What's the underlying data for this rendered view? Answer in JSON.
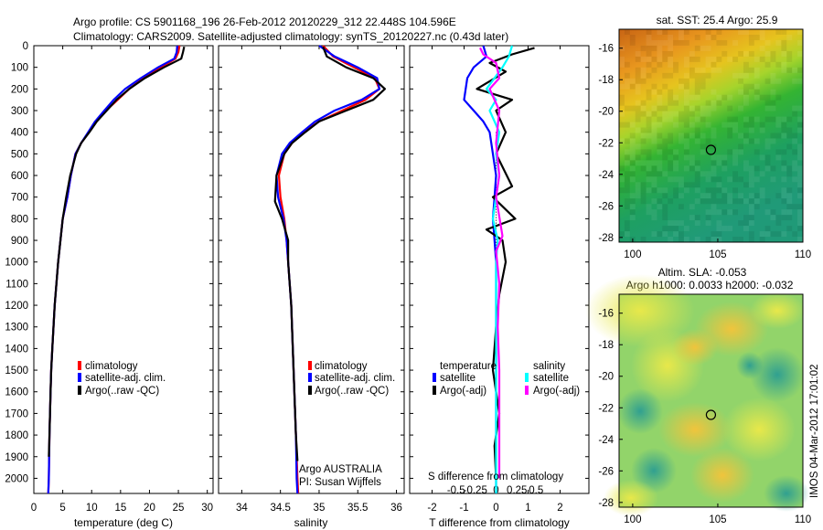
{
  "header": {
    "line1": "Argo profile: CS 5901168_196 26-Feb-2012 20120229_312 22.448S 104.596E",
    "line2": "Climatology: CARS2009. Satellite-adjusted climatology: synTS_20120227.nc (0.43d later)"
  },
  "stamp": "IMOS 04-Mar-2012 17:01:02",
  "colors": {
    "climatology": "#ff0000",
    "satellite": "#0000ff",
    "argo": "#000000",
    "sal_sat": "#00ffff",
    "sal_argo": "#ff00ff"
  },
  "chart_data": [
    {
      "id": "temperature",
      "type": "line",
      "xlabel": "temperature (deg C)",
      "xlim": [
        0,
        31
      ],
      "ylim": [
        2070,
        0
      ],
      "xticks": [
        "0",
        "5",
        "10",
        "15",
        "20",
        "25",
        "30"
      ],
      "xtick_values": [
        0,
        5,
        10,
        15,
        20,
        25,
        30
      ],
      "yticks": [
        "0",
        "100",
        "200",
        "300",
        "400",
        "500",
        "600",
        "700",
        "800",
        "900",
        "1000",
        "1100",
        "1200",
        "1300",
        "1400",
        "1500",
        "1600",
        "1700",
        "1800",
        "1900",
        "2000"
      ],
      "ytick_values": [
        0,
        100,
        200,
        300,
        400,
        500,
        600,
        700,
        800,
        900,
        1000,
        1100,
        1200,
        1300,
        1400,
        1500,
        1600,
        1700,
        1800,
        1900,
        2000
      ],
      "legend": [
        "climatology",
        "satellite-adj. clim.",
        "Argo(..raw -QC)"
      ],
      "series": [
        {
          "name": "climatology",
          "color": "#ff0000",
          "x": [
            25.2,
            25.0,
            24.5,
            22.0,
            19.0,
            16.5,
            14.5,
            12.5,
            10.8,
            9.5,
            8.2,
            7.2,
            6.4,
            5.8,
            5.0,
            4.6,
            4.2,
            3.9,
            3.6,
            3.4,
            3.2,
            3.0,
            2.9,
            2.7,
            2.6,
            2.5
          ],
          "y": [
            0,
            30,
            60,
            100,
            150,
            200,
            250,
            300,
            350,
            400,
            450,
            500,
            600,
            700,
            800,
            900,
            1000,
            1100,
            1200,
            1300,
            1400,
            1500,
            1600,
            1800,
            2000,
            2070
          ]
        },
        {
          "name": "satellite-adj. clim.",
          "color": "#0000ff",
          "x": [
            24.8,
            24.7,
            24.3,
            21.5,
            18.5,
            15.8,
            13.8,
            12.2,
            10.6,
            9.4,
            8.2,
            7.2,
            6.4,
            5.8,
            5.0,
            4.6,
            4.2,
            3.9,
            3.6,
            3.4,
            3.2,
            3.0,
            2.9,
            2.7,
            2.6,
            2.5
          ],
          "y": [
            0,
            30,
            60,
            100,
            150,
            200,
            250,
            300,
            350,
            400,
            450,
            500,
            600,
            700,
            800,
            900,
            1000,
            1100,
            1200,
            1300,
            1400,
            1500,
            1600,
            1800,
            2000,
            2070
          ]
        },
        {
          "name": "Argo(..raw -QC)",
          "color": "#000000",
          "x": [
            26.0,
            25.8,
            25.5,
            22.5,
            19.2,
            16.5,
            14.3,
            12.6,
            10.9,
            9.6,
            8.2,
            7.3,
            6.3,
            5.6,
            5.0,
            4.6,
            4.2,
            3.9,
            3.6,
            3.4,
            3.2,
            3.0,
            2.9,
            2.7,
            2.6
          ],
          "y": [
            5,
            30,
            60,
            100,
            150,
            200,
            250,
            300,
            350,
            400,
            450,
            500,
            600,
            700,
            800,
            900,
            1000,
            1100,
            1200,
            1300,
            1400,
            1500,
            1600,
            1800,
            1900
          ]
        }
      ]
    },
    {
      "id": "salinity",
      "type": "line",
      "xlabel": "salinity",
      "xlim": [
        33.7,
        36.1
      ],
      "ylim": [
        2070,
        0
      ],
      "xticks": [
        "34",
        "34.5",
        "35",
        "35.5",
        "36"
      ],
      "xtick_values": [
        34,
        34.5,
        35,
        35.5,
        36
      ],
      "legend": [
        "climatology",
        "satellite-adj. clim.",
        "Argo(..raw -QC)"
      ],
      "annotation": [
        "Argo AUSTRALIA",
        "PI: Susan Wijffels"
      ],
      "series": [
        {
          "name": "climatology",
          "color": "#ff0000",
          "x": [
            35.05,
            35.18,
            35.45,
            35.72,
            35.78,
            35.6,
            35.3,
            35.0,
            34.8,
            34.65,
            34.55,
            34.48,
            34.5,
            34.55,
            34.58,
            34.6,
            34.62,
            34.64,
            34.66,
            34.68,
            34.7,
            34.72,
            34.73
          ],
          "y": [
            0,
            50,
            100,
            150,
            200,
            250,
            300,
            350,
            400,
            450,
            500,
            600,
            700,
            800,
            900,
            1000,
            1100,
            1200,
            1400,
            1600,
            1800,
            2000,
            2070
          ]
        },
        {
          "name": "satellite-adj. clim.",
          "color": "#0000ff",
          "x": [
            35.0,
            35.2,
            35.5,
            35.75,
            35.78,
            35.55,
            35.2,
            34.95,
            34.78,
            34.62,
            34.52,
            34.45,
            34.47,
            34.54,
            34.58,
            34.6,
            34.62,
            34.64,
            34.66,
            34.68,
            34.7,
            34.71,
            34.72
          ],
          "y": [
            0,
            50,
            100,
            150,
            200,
            250,
            300,
            350,
            400,
            450,
            500,
            600,
            700,
            800,
            900,
            1000,
            1100,
            1200,
            1400,
            1600,
            1800,
            2000,
            2070
          ]
        },
        {
          "name": "Argo(..raw -QC)",
          "color": "#000000",
          "x": [
            35.05,
            35.1,
            35.35,
            35.7,
            35.85,
            35.7,
            35.35,
            35.0,
            34.82,
            34.65,
            34.55,
            34.45,
            34.43,
            34.52,
            34.6,
            34.6,
            34.62,
            34.64,
            34.66,
            34.68,
            34.7,
            34.72
          ],
          "y": [
            5,
            50,
            100,
            150,
            200,
            250,
            300,
            350,
            400,
            450,
            500,
            600,
            720,
            800,
            900,
            1000,
            1100,
            1200,
            1400,
            1600,
            1800,
            1920
          ]
        }
      ]
    },
    {
      "id": "difference",
      "type": "line",
      "xlabel": "T difference from climatology",
      "toplabel": "S difference from climatology",
      "xlim": [
        -2.7,
        2.9
      ],
      "ylim": [
        2070,
        0
      ],
      "xticks": [
        "-2",
        "-1",
        "0",
        "1",
        "2"
      ],
      "xtick_values": [
        -2,
        -1,
        0,
        1,
        2
      ],
      "sticks": [
        "-0.5",
        "-0.25",
        "0",
        "0.25",
        "0.5"
      ],
      "stick_values": [
        -1.25,
        -0.65,
        0,
        0.65,
        1.25
      ],
      "legend_temperature": [
        "temperature",
        "satellite",
        "Argo(-adj)"
      ],
      "legend_salinity": [
        "salinity",
        "satellite",
        "Argo(-adj)"
      ],
      "series": [
        {
          "name": "satellite",
          "color": "#0000ff",
          "x": [
            -0.4,
            -0.3,
            -0.7,
            -0.9,
            -1.0,
            -0.7,
            -0.4,
            -0.2,
            -0.1,
            0.0,
            -0.05,
            -0.1,
            -0.05,
            0.0,
            0.0,
            0.0,
            0.0,
            0.0,
            0.0,
            0.0,
            0.0
          ],
          "y": [
            0,
            50,
            100,
            150,
            250,
            300,
            350,
            400,
            500,
            600,
            700,
            800,
            900,
            1000,
            1100,
            1200,
            1400,
            1600,
            1800,
            2000,
            2070
          ]
        },
        {
          "name": "Argo(-adj)",
          "color": "#000000",
          "x": [
            1.2,
            0.5,
            -0.2,
            0.3,
            -0.6,
            0.5,
            0.0,
            0.3,
            0.0,
            0.5,
            -0.1,
            0.6,
            -0.3,
            0.2,
            0.3,
            0.1,
            0.0,
            -0.1,
            0.1,
            -0.05,
            0.0
          ],
          "y": [
            10,
            40,
            80,
            120,
            200,
            250,
            300,
            400,
            500,
            650,
            700,
            800,
            850,
            900,
            1000,
            1150,
            1300,
            1500,
            1700,
            1850,
            2000
          ]
        },
        {
          "name": "salinity satellite",
          "color": "#00ffff",
          "x": [
            0.5,
            0.4,
            0.2,
            -0.3,
            0.0,
            -0.2,
            0.1,
            0.0,
            0.1,
            0.0,
            -0.1,
            0.05,
            0.0,
            0.0,
            0.0,
            0.0,
            0.0,
            0.0,
            0.0,
            0.0
          ],
          "y": [
            0,
            50,
            100,
            200,
            250,
            300,
            400,
            500,
            600,
            700,
            800,
            900,
            1000,
            1100,
            1200,
            1400,
            1600,
            1800,
            2000,
            2070
          ]
        },
        {
          "name": "salinity Argo(-adj)",
          "color": "#ff00ff",
          "x": [
            -0.5,
            -0.4,
            0.0,
            0.1,
            -0.2,
            0.1,
            0.0,
            0.1,
            0.0,
            0.2,
            0.0,
            0.1,
            0.05,
            0.1,
            0.1,
            0.1,
            0.1,
            0.1
          ],
          "y": [
            10,
            40,
            80,
            150,
            200,
            300,
            450,
            600,
            700,
            880,
            950,
            1100,
            1300,
            1500,
            1700,
            1800,
            1900,
            2000
          ]
        }
      ]
    },
    {
      "id": "sst_map",
      "type": "heatmap",
      "title": "sat. SST: 25.4 Argo: 25.9",
      "xticks": [
        "100",
        "105",
        "110"
      ],
      "xtick_values": [
        100,
        105,
        110
      ],
      "yticks": [
        "-16",
        "-18",
        "-20",
        "-22",
        "-24",
        "-26",
        "-28"
      ],
      "ytick_values": [
        -16,
        -18,
        -20,
        -22,
        -24,
        -26,
        -28
      ],
      "xlim": [
        99.2,
        110
      ],
      "ylim": [
        -28.3,
        -14.8
      ],
      "marker": {
        "lon": 104.596,
        "lat": -22.448
      }
    },
    {
      "id": "sla_map",
      "type": "heatmap",
      "title_line1": "Altim. SLA: -0.053",
      "title_line2": "Argo h1000: 0.0033 h2000: -0.032",
      "xticks": [
        "100",
        "105",
        "110"
      ],
      "xtick_values": [
        100,
        105,
        110
      ],
      "yticks": [
        "-16",
        "-18",
        "-20",
        "-22",
        "-24",
        "-26",
        "-28"
      ],
      "ytick_values": [
        -16,
        -18,
        -20,
        -22,
        -24,
        -26,
        -28
      ],
      "xlim": [
        99.2,
        110
      ],
      "ylim": [
        -28.3,
        -14.8
      ],
      "marker": {
        "lon": 104.596,
        "lat": -22.448
      }
    }
  ]
}
